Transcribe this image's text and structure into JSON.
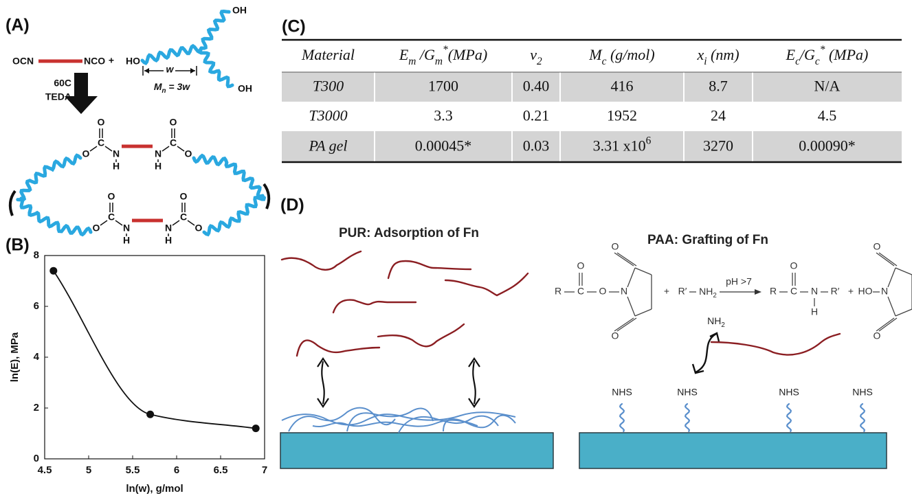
{
  "panel_a": {
    "label": "(A)",
    "diisocyanate": {
      "left": "OCN",
      "right": "NCO"
    },
    "plus": "+",
    "polyol": {
      "end_groups": [
        "HO",
        "OH",
        "OH"
      ],
      "segment": "w",
      "molar_mass": [
        "M",
        {
          "sub": "n"
        },
        " = 3w"
      ]
    },
    "conditions": [
      "60C",
      "TEDA"
    ],
    "urethane": {
      "carbonyl": "O",
      "carbon": "C",
      "ester": "O",
      "nitrogen": "N",
      "hydrogen": "H"
    }
  },
  "chart_data": {
    "type": "line",
    "panel_label": "(B)",
    "x": [
      4.6,
      5.7,
      6.9
    ],
    "values": [
      7.4,
      1.75,
      1.2
    ],
    "color": "#111111",
    "smooth": true,
    "markers": true,
    "x_label": "ln(w), g/mol",
    "y_label": "ln(E), MPa",
    "xlim": [
      4.5,
      7
    ],
    "xticks": [
      4.5,
      5,
      5.5,
      6,
      6.5,
      7
    ],
    "ylim": [
      0,
      8
    ],
    "yticks": [
      0,
      2,
      4,
      6,
      8
    ],
    "grid": false
  },
  "panel_c": {
    "label": "(C)",
    "table": {
      "header": [
        "Material",
        [
          "E",
          {
            "sub": "m"
          },
          " /G",
          {
            "sub": "m"
          },
          {
            "sup": "*"
          },
          "(MPa)"
        ],
        [
          "ν",
          {
            "sub": "2"
          }
        ],
        [
          "M",
          {
            "sub": "c"
          },
          " (g/mol)"
        ],
        [
          "x",
          {
            "sub": "i"
          },
          " (nm)"
        ],
        [
          "E",
          {
            "sub": "c"
          },
          "/G",
          {
            "sub": "c"
          },
          {
            "sup": "*"
          },
          " (MPa)"
        ]
      ],
      "rows": [
        [
          "T300",
          "1700",
          "0.40",
          "416",
          "8.7",
          "N/A"
        ],
        [
          "T3000",
          "3.3",
          "0.21",
          "1952",
          "24",
          "4.5"
        ],
        [
          "PA gel",
          "0.00045*",
          "0.03",
          [
            "3.31 x10",
            {
              "sup": "6"
            }
          ],
          "3270",
          "0.00090*"
        ]
      ]
    }
  },
  "panel_d": {
    "label": "(D)",
    "left_title": "PUR: Adsorption of Fn",
    "right_title": "PAA: Grafting of Fn",
    "reaction": {
      "r": "R",
      "c": "C",
      "o": "O",
      "n": "N",
      "h": "H",
      "plus": "+",
      "r_prime": "R′",
      "nh2": [
        "NH",
        {
          "sub": "2"
        }
      ],
      "condition": "pH >7",
      "ho": "HO"
    },
    "surface_group": "NHS"
  }
}
